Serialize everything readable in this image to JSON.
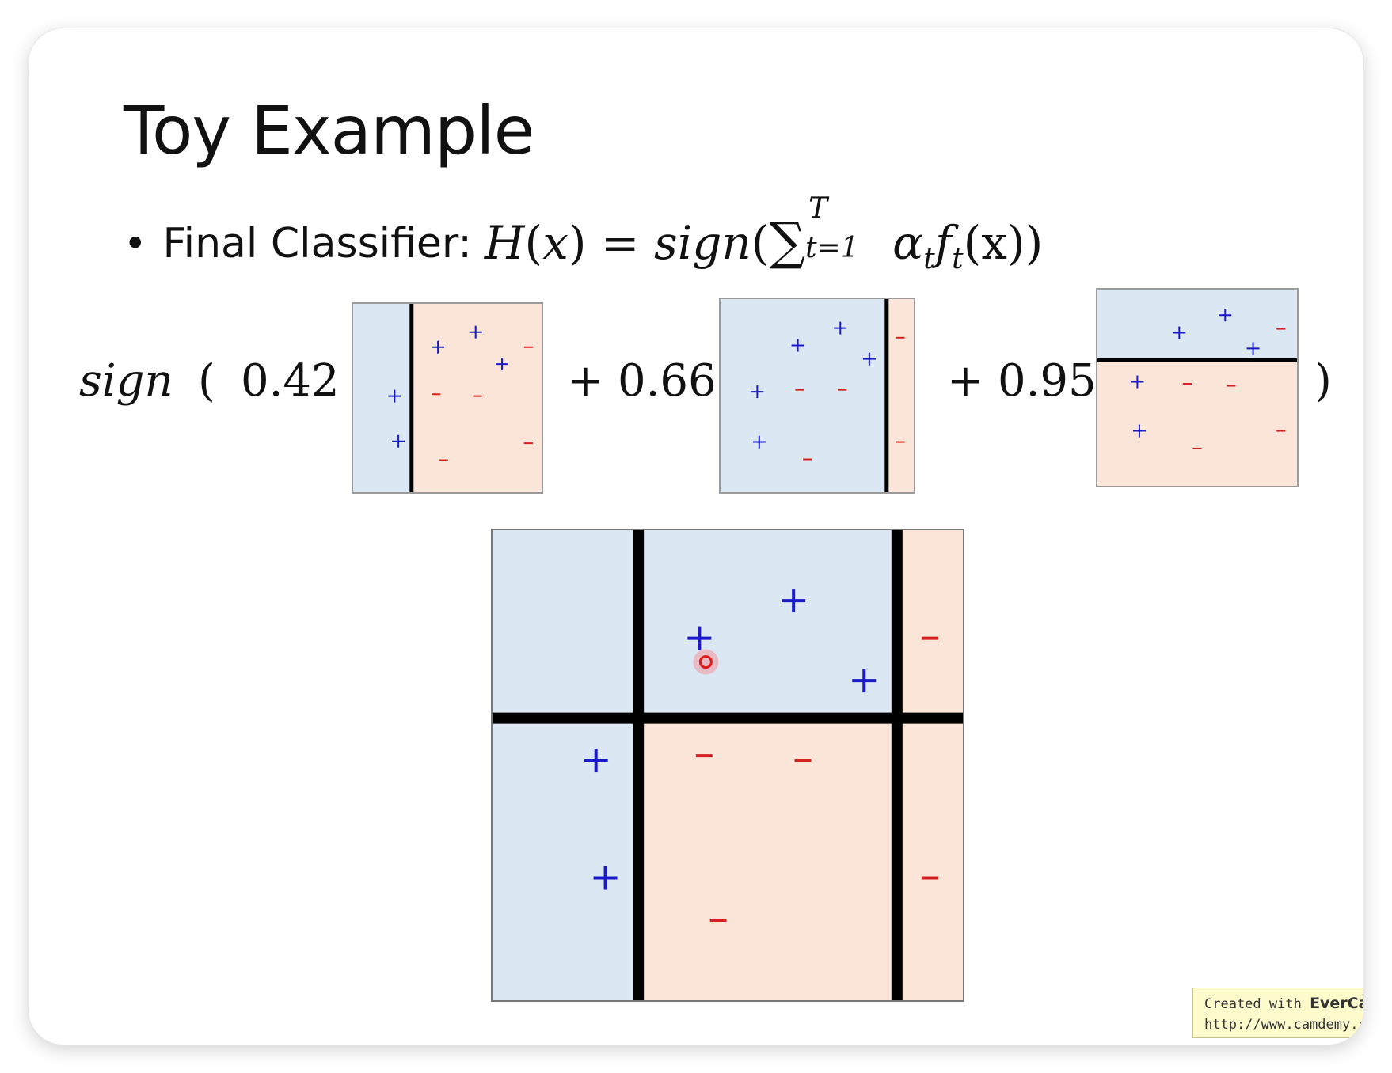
{
  "slide": {
    "title": "Toy Example",
    "bullet": "•",
    "bullet_label": "Final Classifier:",
    "formula": {
      "lhs": "H",
      "lparen": "(",
      "var": "x",
      "rparen": ")",
      "equals": "=",
      "fn": "sign",
      "sigma": "∑",
      "upper": "T",
      "lower": "t=1",
      "alpha": "α",
      "alpha_sub": "t",
      "f": "f",
      "f_sub": "t",
      "tail": "(x))"
    },
    "weighted_sum": {
      "fn": "sign",
      "open": "(",
      "close": ")",
      "plus": "+",
      "weights": [
        "0.42",
        "0.66",
        "0.95"
      ]
    },
    "colors": {
      "positive_region": "#dce7f4",
      "negative_region": "#fae5d8",
      "positive_symbol": "#1a1ac8",
      "negative_symbol": "#d42020",
      "boundary": "#000000"
    },
    "weak_classifiers": [
      {
        "split": "vertical",
        "positive_side": "left",
        "points": [
          {
            "label": "+",
            "x": 0.45,
            "y": 0.23
          },
          {
            "label": "+",
            "x": 0.65,
            "y": 0.15
          },
          {
            "label": "+",
            "x": 0.79,
            "y": 0.32
          },
          {
            "label": "+",
            "x": 0.22,
            "y": 0.49
          },
          {
            "label": "+",
            "x": 0.24,
            "y": 0.73
          },
          {
            "label": "-",
            "x": 0.93,
            "y": 0.23
          },
          {
            "label": "-",
            "x": 0.44,
            "y": 0.48
          },
          {
            "label": "-",
            "x": 0.66,
            "y": 0.49
          },
          {
            "label": "-",
            "x": 0.93,
            "y": 0.74
          },
          {
            "label": "-",
            "x": 0.48,
            "y": 0.83
          }
        ]
      },
      {
        "split": "vertical",
        "positive_side": "left",
        "points": [
          {
            "label": "+",
            "x": 0.4,
            "y": 0.24
          },
          {
            "label": "+",
            "x": 0.62,
            "y": 0.15
          },
          {
            "label": "+",
            "x": 0.77,
            "y": 0.31
          },
          {
            "label": "+",
            "x": 0.19,
            "y": 0.48
          },
          {
            "label": "+",
            "x": 0.2,
            "y": 0.74
          },
          {
            "label": "-",
            "x": 0.93,
            "y": 0.2
          },
          {
            "label": "-",
            "x": 0.41,
            "y": 0.47
          },
          {
            "label": "-",
            "x": 0.63,
            "y": 0.47
          },
          {
            "label": "-",
            "x": 0.93,
            "y": 0.74
          },
          {
            "label": "-",
            "x": 0.45,
            "y": 0.83
          }
        ]
      },
      {
        "split": "horizontal",
        "positive_side": "top",
        "points": [
          {
            "label": "+",
            "x": 0.41,
            "y": 0.22
          },
          {
            "label": "+",
            "x": 0.64,
            "y": 0.13
          },
          {
            "label": "+",
            "x": 0.78,
            "y": 0.3
          },
          {
            "label": "+",
            "x": 0.2,
            "y": 0.47
          },
          {
            "label": "+",
            "x": 0.21,
            "y": 0.72
          },
          {
            "label": "-",
            "x": 0.92,
            "y": 0.2
          },
          {
            "label": "-",
            "x": 0.45,
            "y": 0.48
          },
          {
            "label": "-",
            "x": 0.67,
            "y": 0.49
          },
          {
            "label": "-",
            "x": 0.92,
            "y": 0.72
          },
          {
            "label": "-",
            "x": 0.5,
            "y": 0.81
          }
        ]
      }
    ],
    "combined": {
      "points": [
        {
          "label": "+",
          "x": 0.44,
          "y": 0.23
        },
        {
          "label": "+",
          "x": 0.64,
          "y": 0.15
        },
        {
          "label": "+",
          "x": 0.79,
          "y": 0.32
        },
        {
          "label": "+",
          "x": 0.22,
          "y": 0.49
        },
        {
          "label": "+",
          "x": 0.24,
          "y": 0.74
        },
        {
          "label": "-",
          "x": 0.93,
          "y": 0.23
        },
        {
          "label": "-",
          "x": 0.45,
          "y": 0.48
        },
        {
          "label": "-",
          "x": 0.66,
          "y": 0.49
        },
        {
          "label": "-",
          "x": 0.93,
          "y": 0.74
        },
        {
          "label": "-",
          "x": 0.48,
          "y": 0.83
        }
      ]
    },
    "watermark": {
      "line1_prefix": "Created with ",
      "line1_brand": "EverCam",
      "line2": "http://www.camdemy.com"
    }
  }
}
